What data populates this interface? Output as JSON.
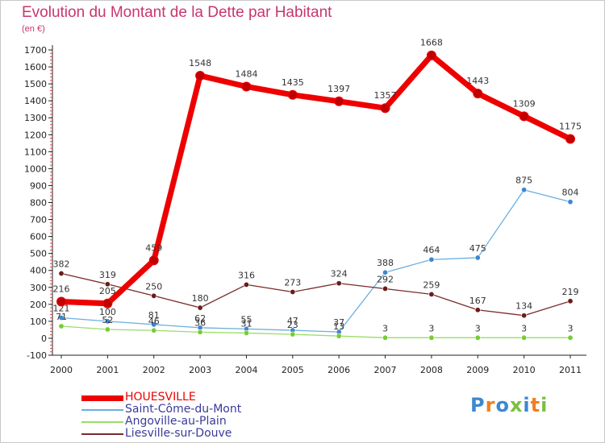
{
  "title": "Evolution du Montant de la Dette par Habitant",
  "unit": "(en €)",
  "brand": "Proxiti",
  "chart_data": {
    "type": "line",
    "title": "Evolution du Montant de la Dette par Habitant",
    "ylabel": "(en €)",
    "xlabel": "",
    "x": [
      "2000",
      "2001",
      "2002",
      "2003",
      "2004",
      "2005",
      "2006",
      "2007",
      "2008",
      "2009",
      "2010",
      "2011"
    ],
    "ylim": [
      -100,
      1700
    ],
    "yticks": [
      -100,
      0,
      100,
      200,
      300,
      400,
      500,
      600,
      700,
      800,
      900,
      1000,
      1100,
      1200,
      1300,
      1400,
      1500,
      1600,
      1700
    ],
    "grid": false,
    "legend_position": "bottom-left",
    "series": [
      {
        "name": "HOUESVILLE",
        "values": [
          216,
          205,
          459,
          1548,
          1484,
          1435,
          1397,
          1357,
          1668,
          1443,
          1309,
          1175
        ],
        "color": "#ee0000",
        "marker": "#c00000",
        "bold": true
      },
      {
        "name": "Saint-Côme-du-Mont",
        "values": [
          121,
          100,
          81,
          62,
          55,
          47,
          37,
          388,
          464,
          475,
          875,
          804
        ],
        "color": "#6aaee0",
        "marker": "#3c88d0",
        "bold": false
      },
      {
        "name": "Angoville-au-Plain",
        "values": [
          71,
          52,
          46,
          36,
          31,
          23,
          13,
          3,
          3,
          3,
          3,
          3
        ],
        "color": "#99dd66",
        "marker": "#77cc33",
        "bold": false
      },
      {
        "name": "Liesville-sur-Douve",
        "values": [
          382,
          319,
          250,
          180,
          316,
          273,
          324,
          292,
          259,
          167,
          134,
          219
        ],
        "color": "#7a2a2a",
        "marker": "#6a1c1c",
        "bold": false
      }
    ]
  },
  "colors": {
    "title": "#c8366e",
    "axis": "#222222",
    "brand_letters": [
      "#3c88d0",
      "#f08020",
      "#3c88d0",
      "#7ac040",
      "#3c88d0",
      "#f08020",
      "#7ac040"
    ]
  }
}
